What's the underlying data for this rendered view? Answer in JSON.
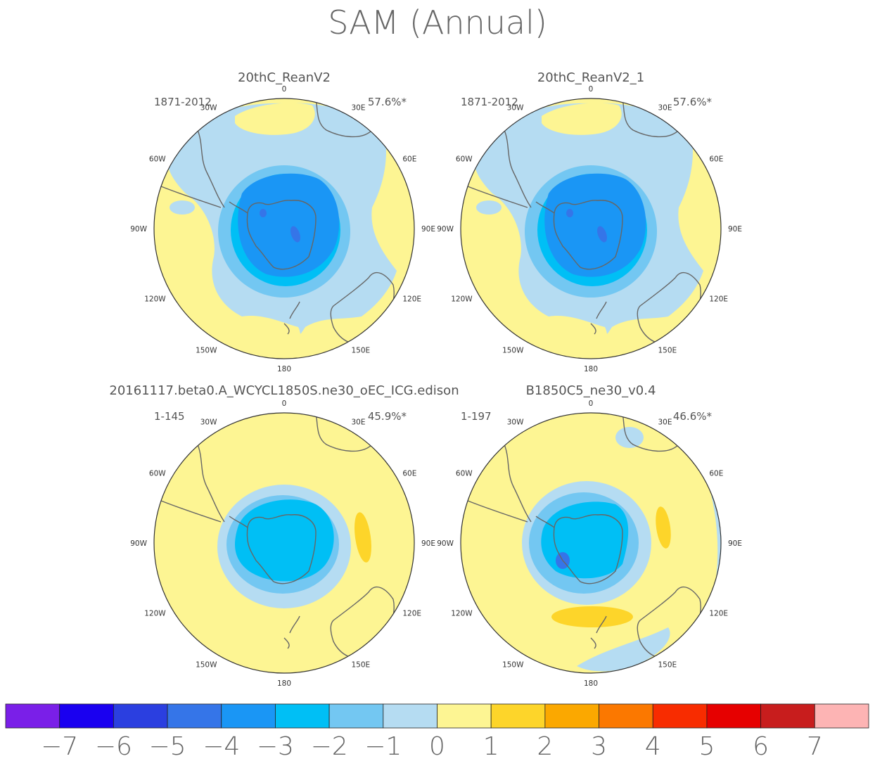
{
  "figure": {
    "title": "SAM (Annual)"
  },
  "colors": {
    "coast": "#666666",
    "frame": "#333333",
    "text": "#555555"
  },
  "panels": [
    {
      "title": "20thC_ReanV2",
      "period": "1871-2012",
      "variance": "57.6%*",
      "field": "reanalysis_a"
    },
    {
      "title": "20thC_ReanV2_1",
      "period": "1871-2012",
      "variance": "57.6%*",
      "field": "reanalysis_b"
    },
    {
      "title": "20161117.beta0.A_WCYCL1850S.ne30_oEC_ICG.edison",
      "period": "1-145",
      "variance": "45.9%*",
      "field": "model_a"
    },
    {
      "title": "B1850C5_ne30_v0.4",
      "period": "1-197",
      "variance": "46.6%*",
      "field": "model_b"
    }
  ],
  "longitude_labels": [
    {
      "text": "0",
      "lon": 0
    },
    {
      "text": "30E",
      "lon": 30
    },
    {
      "text": "60E",
      "lon": 60
    },
    {
      "text": "90E",
      "lon": 90
    },
    {
      "text": "120E",
      "lon": 120
    },
    {
      "text": "150E",
      "lon": 150
    },
    {
      "text": "180",
      "lon": 180
    },
    {
      "text": "150W",
      "lon": 210
    },
    {
      "text": "120W",
      "lon": 240
    },
    {
      "text": "90W",
      "lon": 270
    },
    {
      "text": "60W",
      "lon": 300
    },
    {
      "text": "30W",
      "lon": 330
    }
  ],
  "colorbar": {
    "labels": [
      "-7",
      "-6",
      "-5",
      "-4",
      "-3",
      "-2",
      "-1",
      "0",
      "1",
      "2",
      "3",
      "4",
      "5",
      "6",
      "7"
    ],
    "colors": [
      "#7a1fe8",
      "#1a00f0",
      "#2b3fe0",
      "#3575e8",
      "#1a96f5",
      "#00bff5",
      "#73c7f2",
      "#b5dcf2",
      "#fdf593",
      "#fdd52a",
      "#fba800",
      "#fb7800",
      "#f82c00",
      "#e60000",
      "#c81d1d",
      "#fdb4b4"
    ]
  }
}
